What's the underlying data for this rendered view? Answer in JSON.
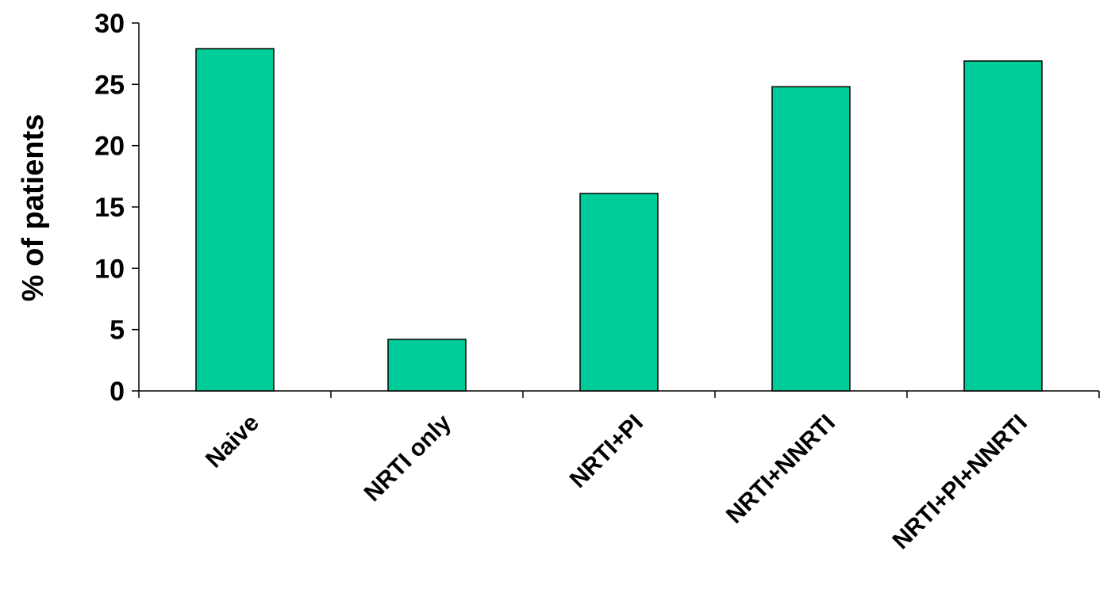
{
  "chart_data": {
    "type": "bar",
    "title": "",
    "xlabel": "",
    "ylabel": "% of patients",
    "categories": [
      "Naive",
      "NRTI only",
      "NRTI+PI",
      "NRTI+NNRTI",
      "NRTI+PI+NNRTI"
    ],
    "values": [
      27.9,
      4.2,
      16.1,
      24.8,
      26.9
    ],
    "ylim": [
      0,
      30
    ],
    "yticks": [
      "0",
      "5",
      "10",
      "15",
      "20",
      "25",
      "30"
    ],
    "grid": false,
    "legend": "none",
    "bar_color": "#00cc99"
  }
}
